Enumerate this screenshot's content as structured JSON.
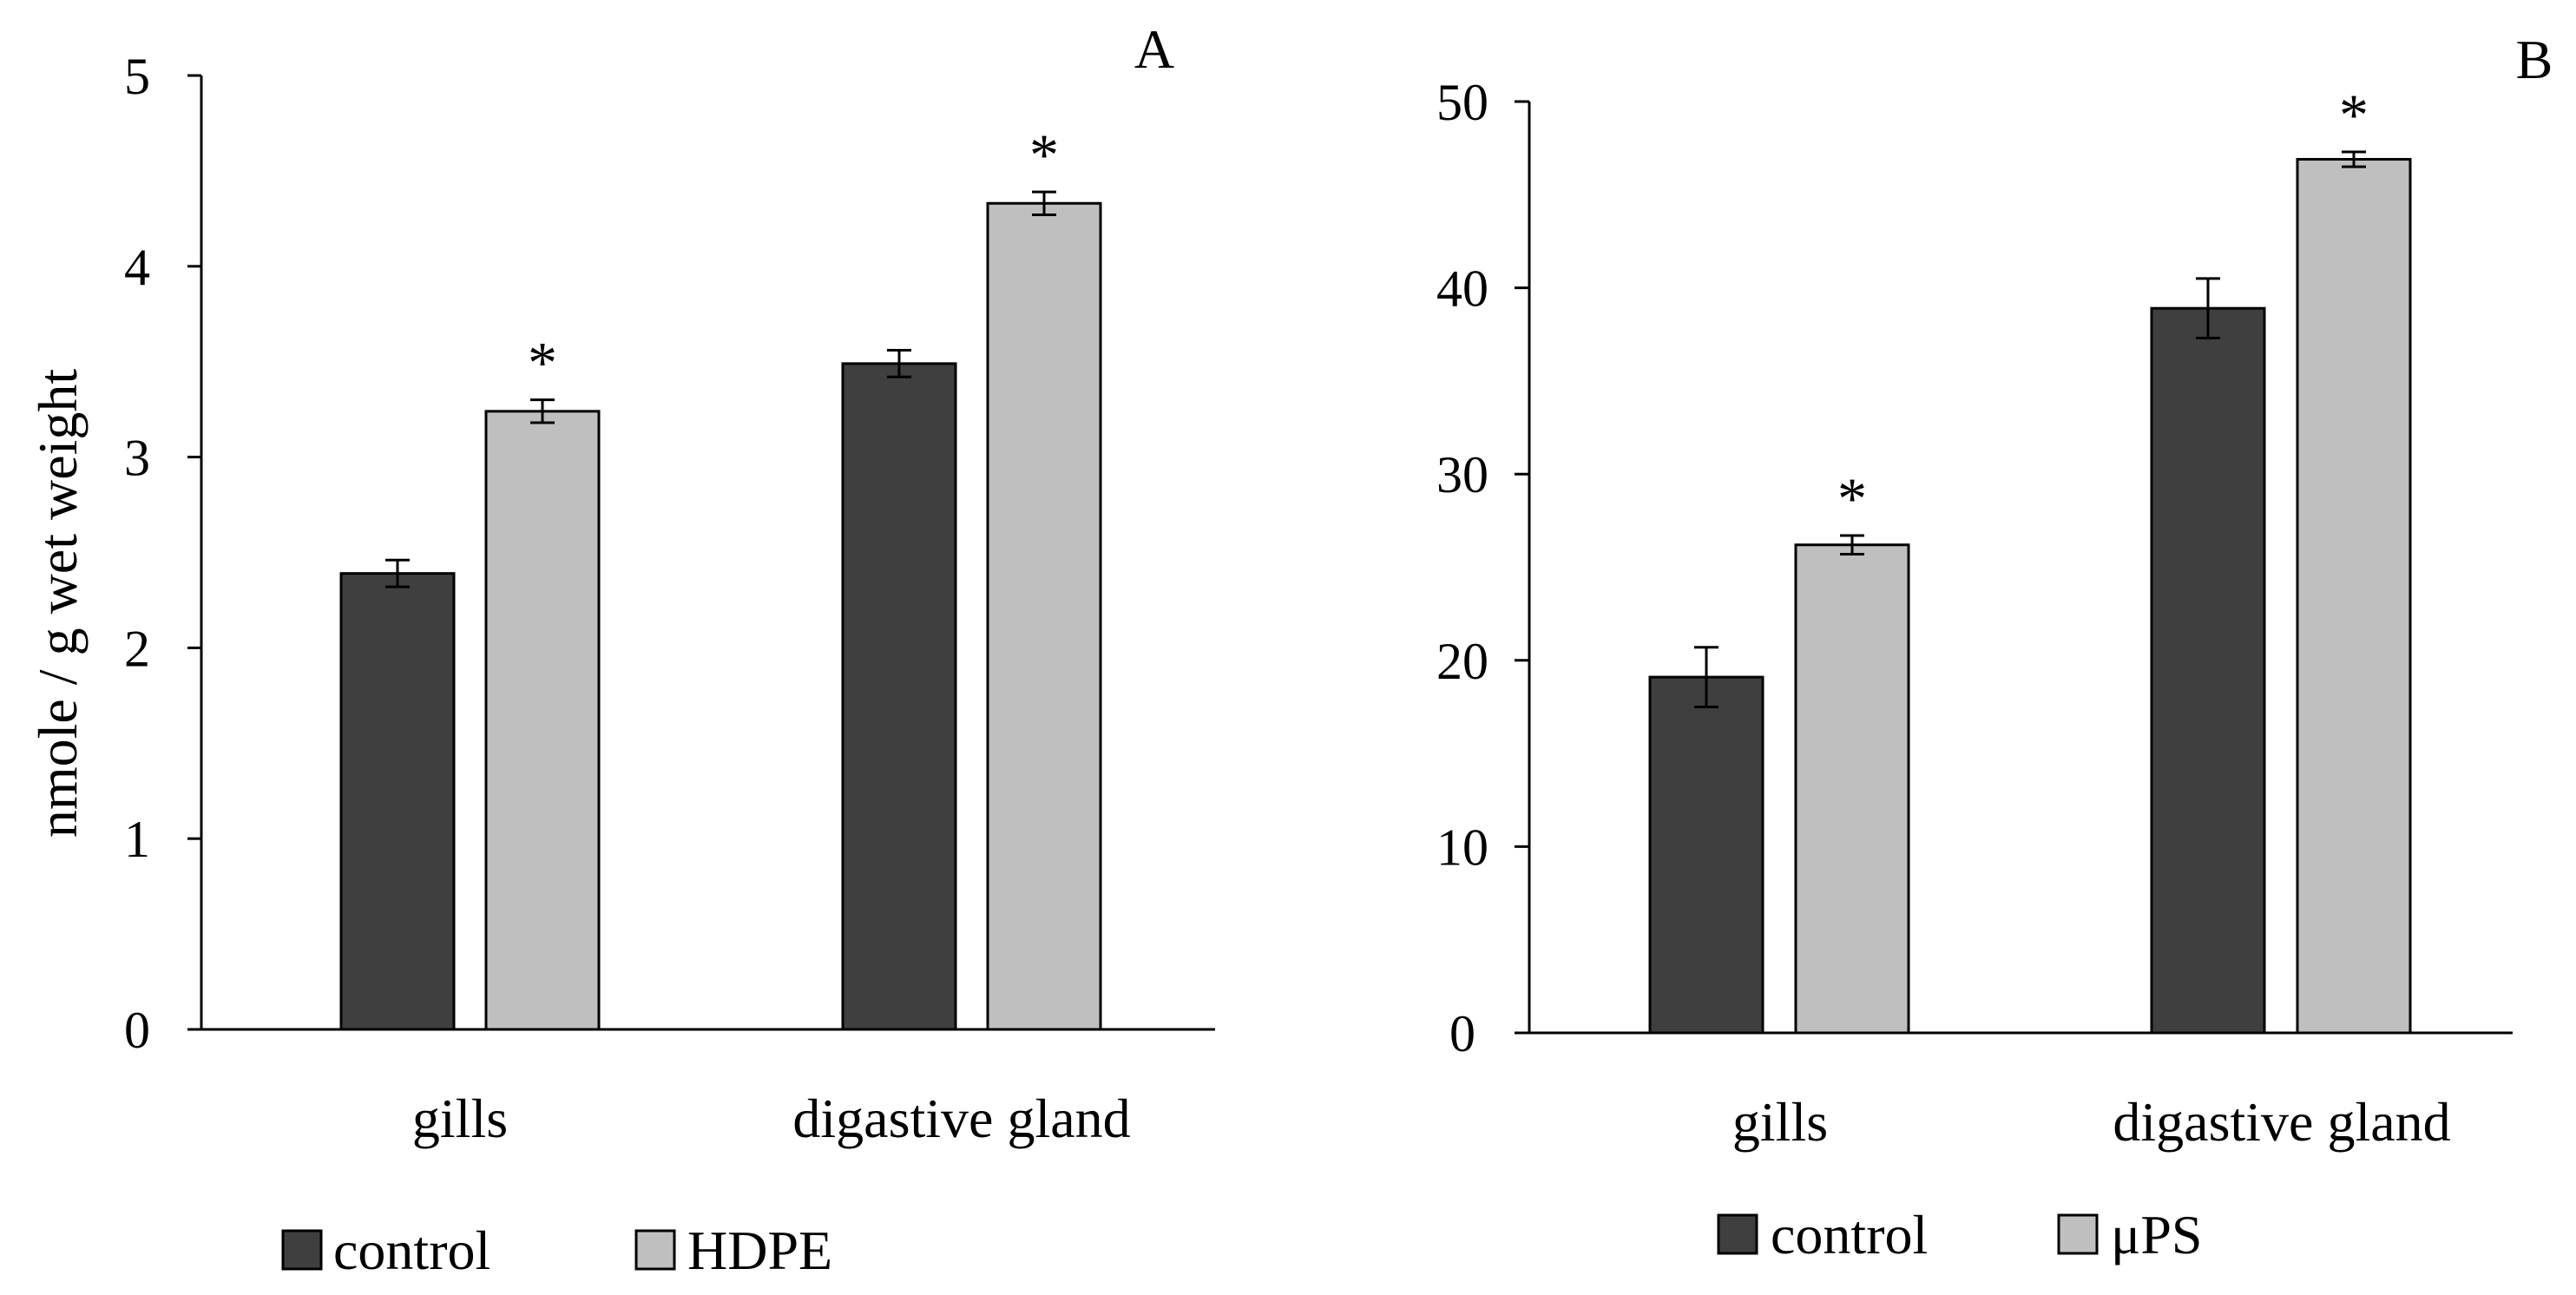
{
  "figure": {
    "y_axis_title": "nmole / g wet weight"
  },
  "chart_data": [
    {
      "panel": "A",
      "type": "bar",
      "panel_label": "A",
      "ylabel": "nmole / g wet weight",
      "ylim": [
        0,
        5
      ],
      "yticks": [
        "0",
        "1",
        "2",
        "3",
        "4",
        "5"
      ],
      "categories": [
        "gills",
        "digastive gland"
      ],
      "series": [
        {
          "name": "control",
          "color": "#3f3f3f",
          "values": [
            2.39,
            3.49
          ],
          "errors": [
            0.07,
            0.07
          ],
          "significance": [
            "",
            ""
          ]
        },
        {
          "name": "HDPE",
          "color": "#bfbfbf",
          "values": [
            3.24,
            4.33
          ],
          "errors": [
            0.06,
            0.06
          ],
          "significance": [
            "*",
            "*"
          ]
        }
      ],
      "legend": [
        "control",
        "HDPE"
      ],
      "legend_position": "bottom"
    },
    {
      "panel": "B",
      "type": "bar",
      "panel_label": "B",
      "ylabel": "",
      "ylim": [
        0,
        50
      ],
      "yticks": [
        "0",
        "10",
        "20",
        "30",
        "40",
        "50"
      ],
      "categories": [
        "gills",
        "digastive gland"
      ],
      "series": [
        {
          "name": "control",
          "color": "#3f3f3f",
          "values": [
            19.1,
            38.9
          ],
          "errors": [
            1.6,
            1.6
          ],
          "significance": [
            "",
            ""
          ]
        },
        {
          "name": "μPS",
          "color": "#bfbfbf",
          "values": [
            26.2,
            46.9
          ],
          "errors": [
            0.5,
            0.4
          ],
          "significance": [
            "*",
            "*"
          ]
        }
      ],
      "legend": [
        "control",
        "μPS"
      ],
      "legend_position": "bottom"
    }
  ]
}
